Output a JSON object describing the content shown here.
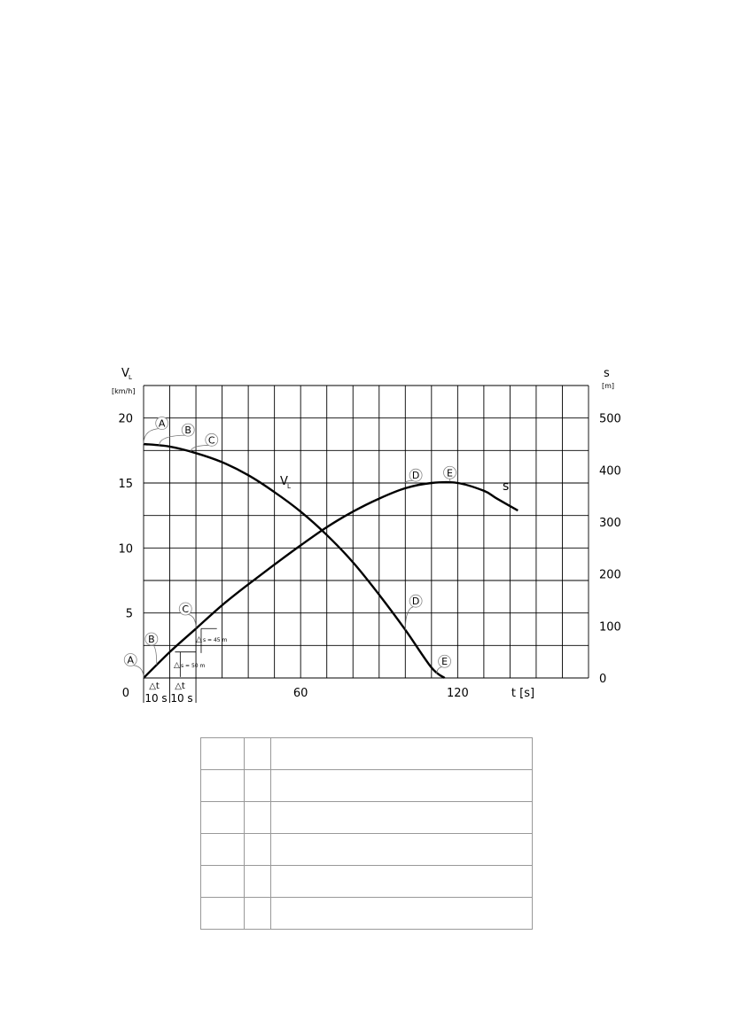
{
  "chart_data": {
    "type": "line",
    "left_axis": {
      "label_main": "V",
      "label_sub": "L",
      "unit": "[km/h]",
      "ticks": [
        "0",
        "5",
        "10",
        "15",
        "20"
      ],
      "tick_values": [
        0,
        5,
        10,
        15,
        20
      ],
      "range": [
        0,
        22.5
      ]
    },
    "right_axis": {
      "label": "s",
      "unit": "[m]",
      "ticks": [
        "0",
        "100",
        "200",
        "300",
        "400",
        "500"
      ],
      "tick_values": [
        0,
        100,
        200,
        300,
        400,
        500
      ],
      "range": [
        0,
        562.5
      ]
    },
    "x_axis": {
      "label": "t [s]",
      "ticks": [
        "60",
        "120"
      ],
      "tick_values": [
        60,
        120
      ],
      "range": [
        0,
        170
      ],
      "grid_step": 10
    },
    "series": [
      {
        "name": "V",
        "name_sub": "L",
        "axis": "left",
        "x": [
          0,
          10,
          20,
          30,
          40,
          50,
          60,
          70,
          80,
          90,
          100,
          110,
          115
        ],
        "y": [
          18,
          17.8,
          17.3,
          16.6,
          15.6,
          14.3,
          12.8,
          11.0,
          8.9,
          6.4,
          3.7,
          0.8,
          0
        ]
      },
      {
        "name": "s",
        "axis": "right",
        "x": [
          0,
          10,
          20,
          30,
          40,
          50,
          60,
          70,
          80,
          90,
          100,
          110,
          120,
          130,
          135,
          143
        ],
        "y": [
          0,
          50,
          95,
          140,
          180,
          218,
          255,
          290,
          320,
          345,
          365,
          375,
          375,
          360,
          345,
          322
        ]
      }
    ],
    "markers": [
      {
        "label": "A",
        "x": 7,
        "y": 490
      },
      {
        "label": "B",
        "x": 17,
        "y": 477
      },
      {
        "label": "C",
        "x": 26,
        "y": 458
      },
      {
        "label": "D",
        "x": 104,
        "y": 390
      },
      {
        "label": "E",
        "x": 117,
        "y": 395
      },
      {
        "label": "D",
        "x": 104,
        "y": 148
      },
      {
        "label": "E",
        "x": 115,
        "y": 32
      },
      {
        "label": "C",
        "x": 16,
        "y": 133
      },
      {
        "label": "B",
        "x": 3,
        "y": 75
      },
      {
        "label": "A",
        "x": -5,
        "y": 35
      }
    ],
    "annotations": {
      "delta_s_1": "s = 50 m",
      "delta_s_2": "s = 45 m",
      "delta_t_symbol": "△t",
      "delta_t_1": "10 s",
      "delta_t_2": "10 s"
    },
    "grid": true
  }
}
